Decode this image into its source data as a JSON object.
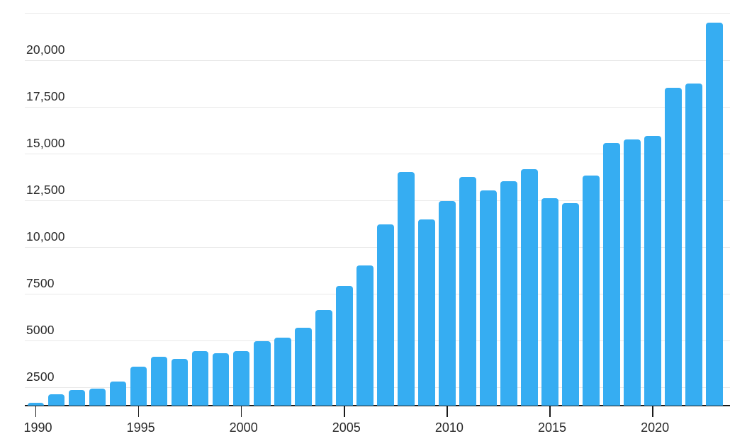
{
  "chart_data": {
    "type": "bar",
    "title": "",
    "xlabel": "",
    "ylabel": "",
    "legend": null,
    "grid": true,
    "categories": [
      1990,
      1991,
      1992,
      1993,
      1994,
      1995,
      1996,
      1997,
      1998,
      1999,
      2000,
      2001,
      2002,
      2003,
      2004,
      2005,
      2006,
      2007,
      2008,
      2009,
      2010,
      2011,
      2012,
      2013,
      2014,
      2015,
      2016,
      2017,
      2018,
      2019,
      2020,
      2021,
      2022,
      2023
    ],
    "values": [
      1650,
      2100,
      2350,
      2400,
      2800,
      3600,
      4100,
      4000,
      4400,
      4300,
      4400,
      4950,
      5150,
      5650,
      6600,
      7900,
      9000,
      11200,
      14000,
      11450,
      12450,
      13750,
      13000,
      13500,
      14150,
      12600,
      12350,
      13800,
      15550,
      15750,
      15950,
      18500,
      18750,
      22000
    ],
    "ylim": [
      1500,
      22500
    ],
    "y_ticks": [
      {
        "value": 2500,
        "label": "2500"
      },
      {
        "value": 5000,
        "label": "5000"
      },
      {
        "value": 7500,
        "label": "7500"
      },
      {
        "value": 10000,
        "label": "10,000"
      },
      {
        "value": 12500,
        "label": "12,500"
      },
      {
        "value": 15000,
        "label": "15,000"
      },
      {
        "value": 17500,
        "label": "17,500"
      },
      {
        "value": 20000,
        "label": "20,000"
      },
      {
        "value": 22500,
        "label": ""
      }
    ],
    "x_ticks": [
      {
        "value": 1990,
        "label": "1990"
      },
      {
        "value": 1995,
        "label": "1995"
      },
      {
        "value": 2000,
        "label": "2000"
      },
      {
        "value": 2005,
        "label": "2005"
      },
      {
        "value": 2010,
        "label": "2010"
      },
      {
        "value": 2015,
        "label": "2015"
      },
      {
        "value": 2020,
        "label": "2020"
      }
    ],
    "bar_color": "#36adf2",
    "gridline_color": "#e9e9e9",
    "axis_color": "#1a1a1a",
    "text_color": "#2a2a2a"
  }
}
